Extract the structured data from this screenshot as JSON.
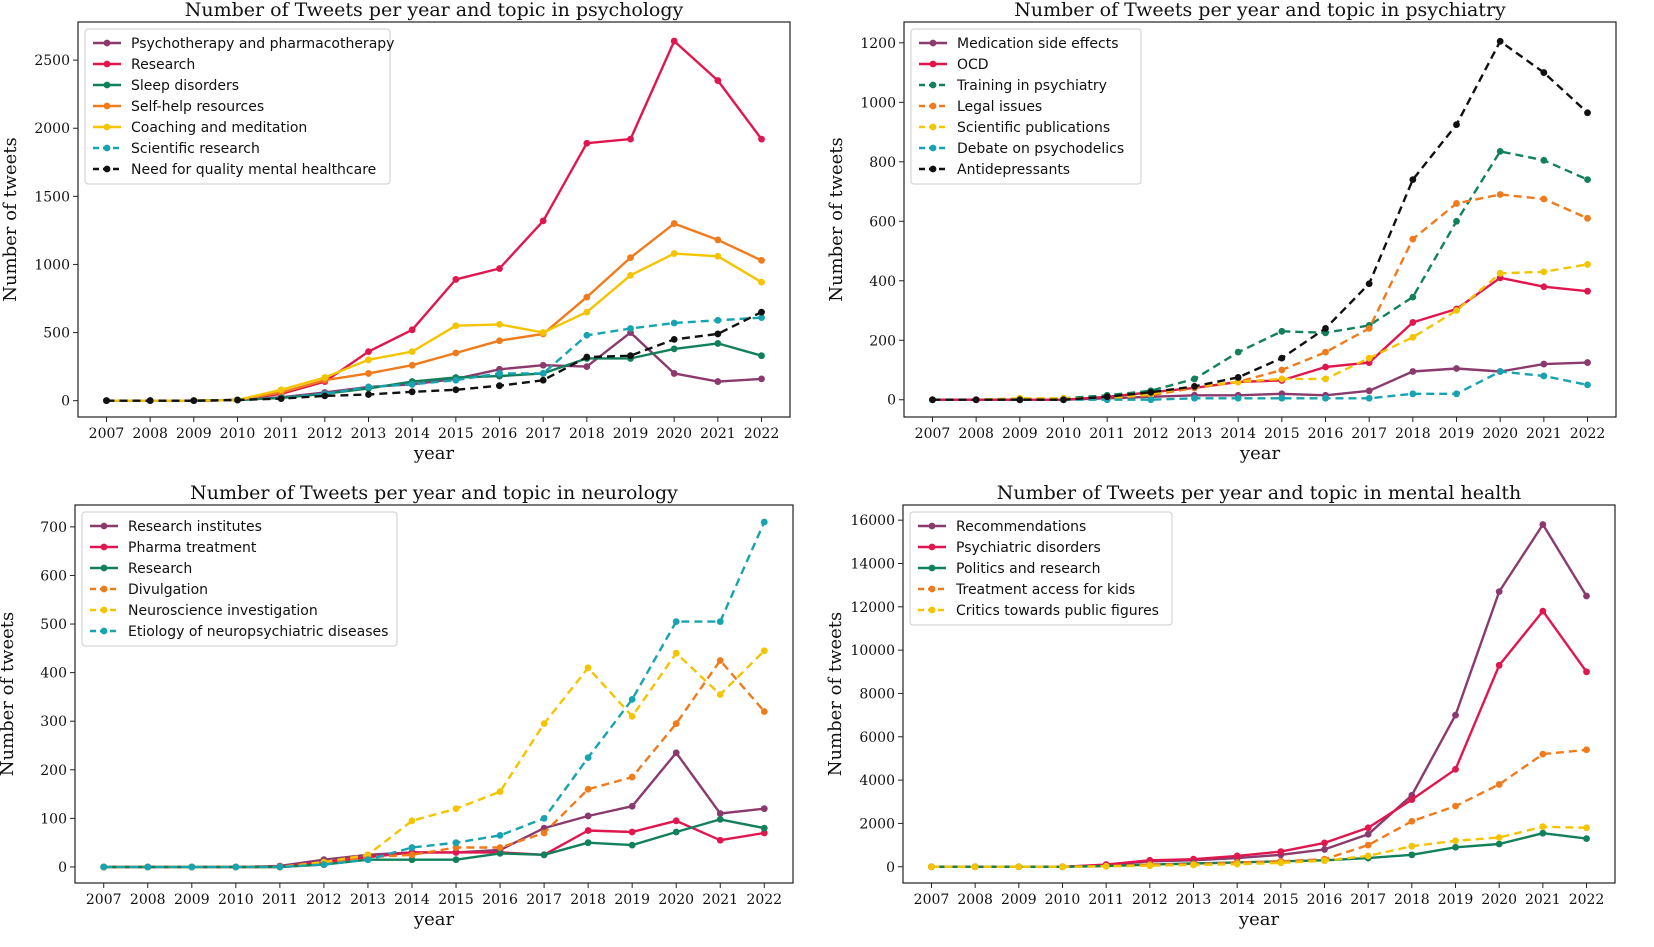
{
  "chart_data": [
    {
      "type": "line",
      "title": "Number of Tweets per year and topic in psychology",
      "xlabel": "year",
      "ylabel": "Number of tweets",
      "x": [
        "2007",
        "2008",
        "2009",
        "2010",
        "2011",
        "2012",
        "2013",
        "2014",
        "2015",
        "2016",
        "2017",
        "2018",
        "2019",
        "2020",
        "2021",
        "2022"
      ],
      "ylim": [
        -120,
        2780
      ],
      "yticks": [
        0,
        500,
        1000,
        1500,
        2000,
        2500
      ],
      "legend_position": "upper-left",
      "series": [
        {
          "name": "Psychotherapy and pharmacotherapy",
          "color": "#8b3a6e",
          "dash": false,
          "values": [
            0,
            0,
            0,
            5,
            25,
            60,
            100,
            120,
            160,
            230,
            260,
            250,
            500,
            200,
            140,
            160
          ]
        },
        {
          "name": "Research",
          "color": "#e0174f",
          "dash": false,
          "values": [
            0,
            0,
            0,
            5,
            50,
            140,
            360,
            520,
            890,
            970,
            1320,
            1890,
            1920,
            2640,
            2350,
            1920
          ]
        },
        {
          "name": "Sleep disorders",
          "color": "#12805a",
          "dash": false,
          "values": [
            0,
            0,
            0,
            5,
            20,
            50,
            90,
            140,
            170,
            180,
            200,
            310,
            310,
            380,
            420,
            330
          ]
        },
        {
          "name": "Self-help resources",
          "color": "#f07b1c",
          "dash": false,
          "values": [
            0,
            0,
            0,
            5,
            60,
            150,
            200,
            260,
            350,
            440,
            490,
            760,
            1050,
            1300,
            1180,
            1030
          ]
        },
        {
          "name": "Coaching and meditation",
          "color": "#f5c400",
          "dash": false,
          "values": [
            0,
            0,
            0,
            5,
            80,
            170,
            300,
            360,
            550,
            560,
            500,
            650,
            920,
            1080,
            1060,
            870
          ]
        },
        {
          "name": "Scientific research",
          "color": "#17a3b0",
          "dash": true,
          "values": [
            0,
            0,
            0,
            5,
            20,
            50,
            100,
            120,
            150,
            200,
            200,
            480,
            530,
            570,
            590,
            610
          ]
        },
        {
          "name": "Need for quality mental healthcare",
          "color": "#111111",
          "dash": true,
          "values": [
            0,
            0,
            0,
            5,
            15,
            35,
            45,
            65,
            80,
            110,
            150,
            320,
            330,
            450,
            490,
            650
          ]
        }
      ]
    },
    {
      "type": "line",
      "title": "Number of Tweets per year and topic in psychiatry",
      "xlabel": "year",
      "ylabel": "Number of tweets",
      "x": [
        "2007",
        "2008",
        "2009",
        "2010",
        "2011",
        "2012",
        "2013",
        "2014",
        "2015",
        "2016",
        "2017",
        "2018",
        "2019",
        "2020",
        "2021",
        "2022"
      ],
      "ylim": [
        -58,
        1270
      ],
      "yticks": [
        0,
        200,
        400,
        600,
        800,
        1000,
        1200
      ],
      "legend_position": "upper-left",
      "series": [
        {
          "name": "Medication side effects",
          "color": "#8b3a6e",
          "dash": false,
          "values": [
            0,
            0,
            0,
            0,
            5,
            10,
            15,
            15,
            20,
            15,
            30,
            95,
            105,
            95,
            120,
            125
          ]
        },
        {
          "name": "OCD",
          "color": "#e0174f",
          "dash": false,
          "values": [
            0,
            0,
            0,
            0,
            10,
            25,
            40,
            60,
            65,
            110,
            125,
            260,
            305,
            410,
            380,
            365
          ]
        },
        {
          "name": "Training in psychiatry",
          "color": "#12805a",
          "dash": true,
          "values": [
            0,
            0,
            0,
            5,
            15,
            30,
            70,
            160,
            230,
            225,
            250,
            345,
            600,
            835,
            805,
            740
          ]
        },
        {
          "name": "Legal issues",
          "color": "#f07b1c",
          "dash": true,
          "values": [
            0,
            0,
            0,
            0,
            5,
            15,
            40,
            60,
            100,
            160,
            240,
            540,
            660,
            690,
            675,
            610
          ]
        },
        {
          "name": "Scientific publications",
          "color": "#f5c400",
          "dash": true,
          "values": [
            0,
            0,
            5,
            5,
            5,
            20,
            45,
            60,
            70,
            70,
            140,
            210,
            300,
            425,
            430,
            455
          ]
        },
        {
          "name": "Debate on psychodelics",
          "color": "#17a3b0",
          "dash": true,
          "values": [
            0,
            0,
            0,
            0,
            0,
            0,
            5,
            5,
            5,
            5,
            5,
            20,
            20,
            95,
            80,
            50
          ]
        },
        {
          "name": "Antidepressants",
          "color": "#111111",
          "dash": true,
          "values": [
            0,
            0,
            0,
            0,
            10,
            25,
            45,
            75,
            140,
            240,
            390,
            740,
            925,
            1205,
            1100,
            965
          ]
        }
      ]
    },
    {
      "type": "line",
      "title": "Number of Tweets per year and topic in neurology",
      "xlabel": "year",
      "ylabel": "Number of tweets",
      "x": [
        "2007",
        "2008",
        "2009",
        "2010",
        "2011",
        "2012",
        "2013",
        "2014",
        "2015",
        "2016",
        "2017",
        "2018",
        "2019",
        "2020",
        "2021",
        "2022"
      ],
      "ylim": [
        -33,
        745
      ],
      "yticks": [
        0,
        100,
        200,
        300,
        400,
        500,
        600,
        700
      ],
      "legend_position": "upper-left",
      "series": [
        {
          "name": "Research institutes",
          "color": "#8b3a6e",
          "dash": false,
          "values": [
            0,
            0,
            0,
            0,
            2,
            15,
            25,
            30,
            30,
            35,
            80,
            105,
            125,
            235,
            110,
            120
          ]
        },
        {
          "name": "Pharma treatment",
          "color": "#e0174f",
          "dash": false,
          "values": [
            0,
            0,
            0,
            0,
            0,
            10,
            20,
            30,
            30,
            30,
            25,
            75,
            72,
            95,
            55,
            70
          ]
        },
        {
          "name": "Research",
          "color": "#12805a",
          "dash": false,
          "values": [
            0,
            0,
            0,
            0,
            0,
            5,
            15,
            15,
            15,
            28,
            25,
            50,
            45,
            72,
            98,
            80
          ]
        },
        {
          "name": "Divulgation",
          "color": "#f07b1c",
          "dash": true,
          "values": [
            0,
            0,
            0,
            0,
            0,
            5,
            20,
            25,
            40,
            40,
            70,
            160,
            185,
            295,
            425,
            320
          ]
        },
        {
          "name": "Neuroscience investigation",
          "color": "#f5c400",
          "dash": true,
          "values": [
            0,
            0,
            0,
            0,
            0,
            10,
            25,
            95,
            120,
            155,
            295,
            410,
            310,
            440,
            355,
            445
          ]
        },
        {
          "name": "Etiology of neuropsychiatric diseases",
          "color": "#17a3b0",
          "dash": true,
          "values": [
            0,
            0,
            0,
            0,
            0,
            5,
            15,
            40,
            50,
            65,
            100,
            225,
            345,
            505,
            505,
            710
          ]
        }
      ]
    },
    {
      "type": "line",
      "title": "Number of Tweets per year and topic in mental health",
      "xlabel": "year",
      "ylabel": "Number of tweets",
      "x": [
        "2007",
        "2008",
        "2009",
        "2010",
        "2011",
        "2012",
        "2013",
        "2014",
        "2015",
        "2016",
        "2017",
        "2018",
        "2019",
        "2020",
        "2021",
        "2022"
      ],
      "ylim": [
        -750,
        16700
      ],
      "yticks": [
        0,
        2000,
        4000,
        6000,
        8000,
        10000,
        12000,
        14000,
        16000
      ],
      "legend_position": "upper-left",
      "series": [
        {
          "name": "Recommendations",
          "color": "#8b3a6e",
          "dash": false,
          "values": [
            0,
            0,
            0,
            0,
            80,
            250,
            300,
            400,
            550,
            800,
            1500,
            3300,
            7000,
            12700,
            15800,
            12500
          ]
        },
        {
          "name": "Psychiatric disorders",
          "color": "#e0174f",
          "dash": false,
          "values": [
            0,
            0,
            0,
            0,
            100,
            300,
            350,
            500,
            700,
            1100,
            1800,
            3100,
            4500,
            9300,
            11800,
            9000
          ]
        },
        {
          "name": "Politics and research",
          "color": "#12805a",
          "dash": false,
          "values": [
            0,
            0,
            0,
            0,
            30,
            100,
            150,
            200,
            250,
            300,
            400,
            550,
            900,
            1050,
            1550,
            1300
          ]
        },
        {
          "name": "Treatment access for kids",
          "color": "#f07b1c",
          "dash": true,
          "values": [
            0,
            0,
            0,
            0,
            30,
            100,
            120,
            200,
            250,
            350,
            1000,
            2100,
            2800,
            3800,
            5200,
            5400
          ]
        },
        {
          "name": "Critics towards public figures",
          "color": "#f5c400",
          "dash": true,
          "values": [
            0,
            0,
            0,
            0,
            20,
            50,
            80,
            120,
            180,
            280,
            500,
            950,
            1200,
            1350,
            1850,
            1800
          ]
        }
      ]
    }
  ]
}
